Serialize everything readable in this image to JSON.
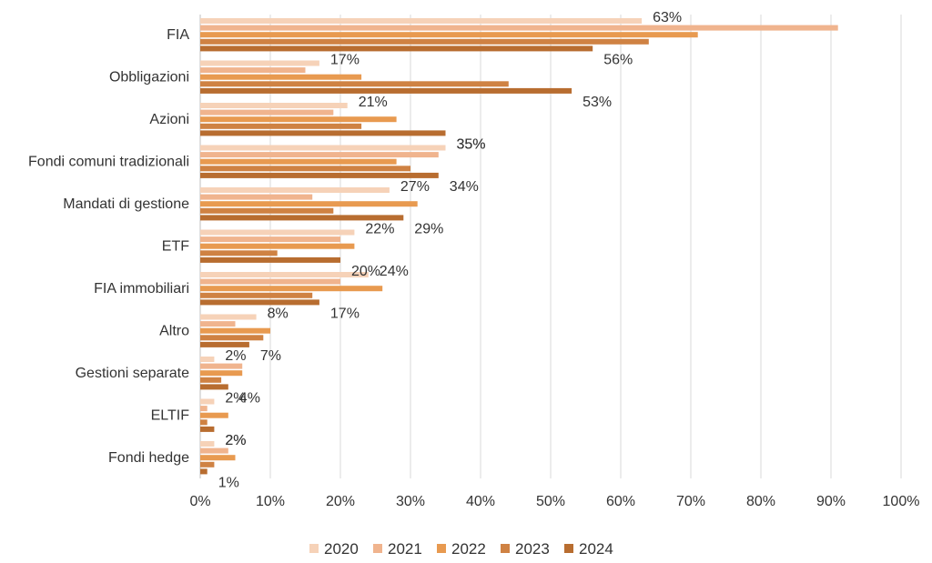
{
  "chart_data": {
    "type": "bar",
    "orientation": "horizontal",
    "categories": [
      "FIA",
      "Obbligazioni",
      "Azioni",
      "Fondi comuni tradizionali",
      "Mandati di gestione",
      "ETF",
      "FIA immobiliari",
      "Altro",
      "Gestioni separate",
      "ELTIF",
      "Fondi hedge"
    ],
    "series": [
      {
        "name": "2020",
        "color": "#f6d2b8",
        "values": [
          63,
          17,
          21,
          35,
          27,
          22,
          24,
          8,
          2,
          2,
          2
        ]
      },
      {
        "name": "2021",
        "color": "#f0b48e",
        "values": [
          91,
          15,
          19,
          34,
          16,
          20,
          20,
          5,
          6,
          1,
          4
        ]
      },
      {
        "name": "2022",
        "color": "#e89a50",
        "values": [
          71,
          23,
          28,
          28,
          31,
          22,
          26,
          10,
          6,
          4,
          5
        ]
      },
      {
        "name": "2023",
        "color": "#cf8243",
        "values": [
          64,
          44,
          23,
          30,
          19,
          11,
          16,
          9,
          3,
          1,
          2
        ]
      },
      {
        "name": "2024",
        "color": "#b86d30",
        "values": [
          56,
          53,
          35,
          34,
          29,
          20,
          17,
          7,
          4,
          2,
          1
        ]
      }
    ],
    "data_labels": [
      {
        "category": "FIA",
        "series": "2020",
        "text": "63%"
      },
      {
        "category": "FIA",
        "series": "2024",
        "text": "56%"
      },
      {
        "category": "Obbligazioni",
        "series": "2020",
        "text": "17%"
      },
      {
        "category": "Obbligazioni",
        "series": "2024",
        "text": "53%"
      },
      {
        "category": "Azioni",
        "series": "2020",
        "text": "21%"
      },
      {
        "category": "Azioni",
        "series": "2024",
        "text": "35%"
      },
      {
        "category": "Fondi comuni tradizionali",
        "series": "2020",
        "text": "35%"
      },
      {
        "category": "Fondi comuni tradizionali",
        "series": "2024",
        "text": "34%"
      },
      {
        "category": "Mandati di gestione",
        "series": "2020",
        "text": "27%"
      },
      {
        "category": "Mandati di gestione",
        "series": "2024",
        "text": "29%"
      },
      {
        "category": "ETF",
        "series": "2020",
        "text": "22%"
      },
      {
        "category": "ETF",
        "series": "2024",
        "text": "20%"
      },
      {
        "category": "FIA immobiliari",
        "series": "2020",
        "text": "24%"
      },
      {
        "category": "FIA immobiliari",
        "series": "2024",
        "text": "17%"
      },
      {
        "category": "Altro",
        "series": "2020",
        "text": "8%"
      },
      {
        "category": "Altro",
        "series": "2024",
        "text": "7%"
      },
      {
        "category": "Gestioni separate",
        "series": "2020",
        "text": "2%"
      },
      {
        "category": "Gestioni separate",
        "series": "2024",
        "text": "4%"
      },
      {
        "category": "ELTIF",
        "series": "2020",
        "text": "2%"
      },
      {
        "category": "ELTIF",
        "series": "2024",
        "text": "2%"
      },
      {
        "category": "Fondi hedge",
        "series": "2020",
        "text": "2%"
      },
      {
        "category": "Fondi hedge",
        "series": "2024",
        "text": "1%"
      }
    ],
    "xlim": [
      0,
      100
    ],
    "xticks": [
      0,
      10,
      20,
      30,
      40,
      50,
      60,
      70,
      80,
      90,
      100
    ],
    "xtick_labels": [
      "0%",
      "10%",
      "20%",
      "30%",
      "40%",
      "50%",
      "60%",
      "70%",
      "80%",
      "90%",
      "100%"
    ],
    "grid": true,
    "legend": {
      "position": "bottom",
      "entries": [
        "2020",
        "2021",
        "2022",
        "2023",
        "2024"
      ]
    },
    "title": "",
    "xlabel": "",
    "ylabel": ""
  }
}
